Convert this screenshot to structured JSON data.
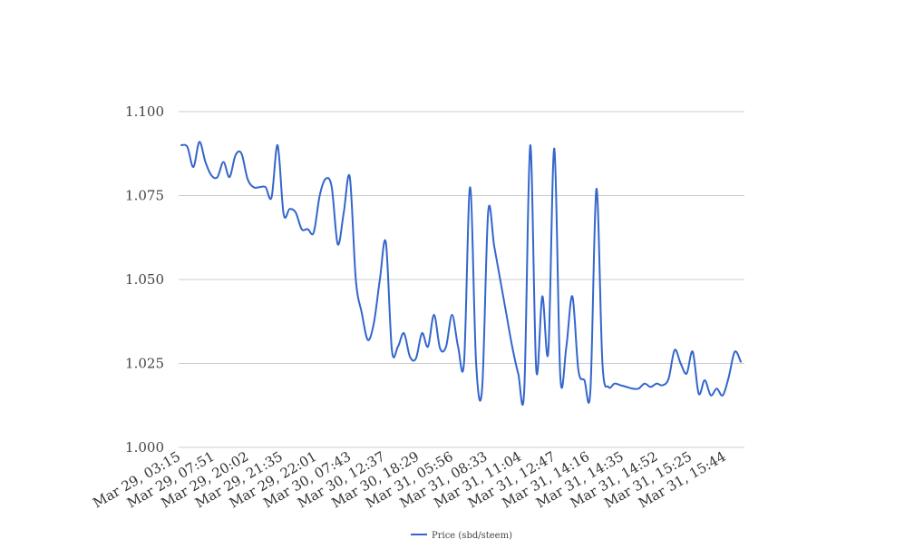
{
  "chart_data": {
    "type": "line",
    "title": "",
    "xlabel": "",
    "ylabel": "",
    "ylim": [
      1.0,
      1.1
    ],
    "yticks": [
      "1.000",
      "1.025",
      "1.050",
      "1.075",
      "1.100"
    ],
    "grid": true,
    "legend_position": "bottom-center",
    "x_tick_labels": [
      "Mar 29, 03:15",
      "Mar 29, 07:51",
      "Mar 29, 20:02",
      "Mar 29, 21:35",
      "Mar 29, 22:01",
      "Mar 30, 07:43",
      "Mar 30, 12:37",
      "Mar 30, 18:29",
      "Mar 31, 05:56",
      "Mar 31, 08:33",
      "Mar 31, 11:04",
      "Mar 31, 12:47",
      "Mar 31, 14:16",
      "Mar 31, 14:35",
      "Mar 31, 14:52",
      "Mar 31, 15:25",
      "Mar 31, 15:44"
    ],
    "series": [
      {
        "name": "Price (sbd/steem)",
        "color": "#3366cc",
        "values": [
          1.09,
          1.0895,
          1.0835,
          1.091,
          1.085,
          1.081,
          1.0805,
          1.085,
          1.0805,
          1.087,
          1.0875,
          1.08,
          1.0775,
          1.0775,
          1.0775,
          1.0745,
          1.09,
          1.0695,
          1.071,
          1.07,
          1.065,
          1.065,
          1.064,
          1.075,
          1.08,
          1.0775,
          1.0605,
          1.07,
          1.0805,
          1.05,
          1.04,
          1.032,
          1.037,
          1.05,
          1.061,
          1.029,
          1.03,
          1.034,
          1.027,
          1.0265,
          1.034,
          1.03,
          1.0395,
          1.0295,
          1.03,
          1.0395,
          1.03,
          1.0255,
          1.0775,
          1.025,
          1.0175,
          1.07,
          1.06,
          1.05,
          1.04,
          1.03,
          1.022,
          1.017,
          1.09,
          1.023,
          1.045,
          1.0285,
          1.089,
          1.021,
          1.03,
          1.045,
          1.023,
          1.02,
          1.017,
          1.077,
          1.025,
          1.018,
          1.019,
          1.0185,
          1.018,
          1.0175,
          1.0175,
          1.019,
          1.018,
          1.019,
          1.0185,
          1.0205,
          1.029,
          1.025,
          1.022,
          1.0285,
          1.016,
          1.02,
          1.0155,
          1.0175,
          1.0155,
          1.021,
          1.0285,
          1.0255
        ]
      }
    ]
  }
}
